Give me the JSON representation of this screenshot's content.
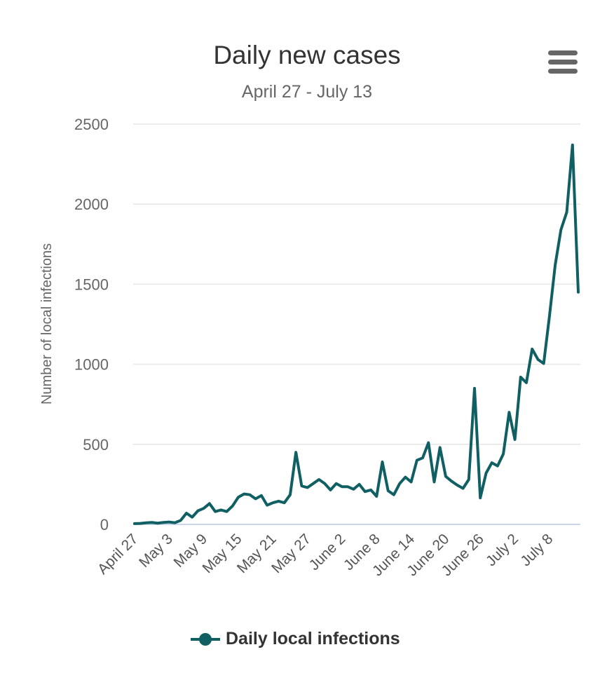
{
  "header": {
    "title": "Daily new cases",
    "subtitle": "April 27 - July 13",
    "menu_icon": "hamburger-menu-icon"
  },
  "chart_data": {
    "type": "line",
    "title": "Daily new cases",
    "subtitle": "April 27 - July 13",
    "xlabel": "",
    "ylabel": "Number of local infections",
    "ylim": [
      0,
      2500
    ],
    "yticks": [
      0,
      500,
      1000,
      1500,
      2000,
      2500
    ],
    "grid": true,
    "x_tick_labels": [
      "April 27",
      "May 3",
      "May 9",
      "May 15",
      "May 21",
      "May 27",
      "June 2",
      "June 8",
      "June 14",
      "June 20",
      "June 26",
      "July 2",
      "July 8"
    ],
    "x_tick_interval_days": 6,
    "x_start": "April 27",
    "x_end": "July 13",
    "legend_position": "bottom-center",
    "series": [
      {
        "name": "Daily local infections",
        "color": "#0f5f63",
        "values": [
          5,
          6,
          10,
          12,
          8,
          12,
          15,
          10,
          25,
          70,
          45,
          85,
          100,
          130,
          80,
          90,
          80,
          115,
          170,
          190,
          185,
          160,
          180,
          120,
          135,
          145,
          135,
          185,
          450,
          240,
          230,
          255,
          280,
          255,
          215,
          255,
          235,
          235,
          220,
          250,
          205,
          215,
          175,
          390,
          210,
          185,
          255,
          295,
          265,
          400,
          415,
          510,
          265,
          480,
          300,
          270,
          245,
          225,
          280,
          850,
          165,
          320,
          385,
          365,
          440,
          700,
          530,
          920,
          885,
          1095,
          1030,
          1005,
          1300,
          1620,
          1840,
          1950,
          2370,
          1450
        ]
      }
    ]
  },
  "legend": {
    "label": "Daily local infections"
  }
}
